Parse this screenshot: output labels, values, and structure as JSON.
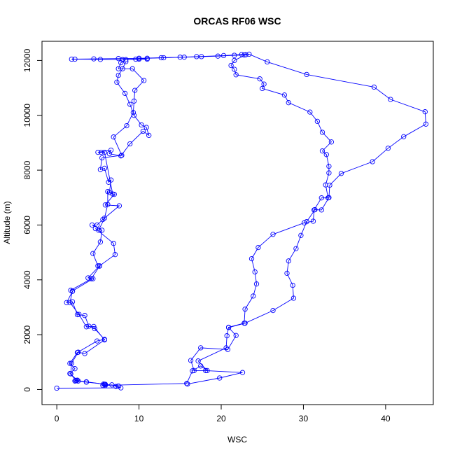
{
  "chart_data": {
    "type": "line",
    "title": "ORCAS RF06 WSC",
    "xlabel": "WSC",
    "ylabel": "Altitude (m)",
    "xlim": [
      -1.8,
      45.8
    ],
    "ylim": [
      -550,
      12700
    ],
    "xticks": [
      0,
      10,
      20,
      30,
      40
    ],
    "yticks": [
      0,
      2000,
      4000,
      6000,
      8000,
      10000,
      12000
    ],
    "grid": false,
    "legend": "none",
    "series_color": "#0000ff",
    "series": [
      {
        "points": [
          [
            0.0,
            50
          ],
          [
            7.8,
            60
          ],
          [
            7.2,
            110
          ],
          [
            6.7,
            170
          ],
          [
            5.9,
            150
          ],
          [
            5.8,
            190
          ],
          [
            5.7,
            200
          ],
          [
            3.6,
            270
          ],
          [
            2.4,
            320
          ],
          [
            2.6,
            310
          ],
          [
            2.2,
            310
          ],
          [
            2.5,
            340
          ],
          [
            1.6,
            580
          ],
          [
            2.2,
            760
          ],
          [
            1.6,
            950
          ],
          [
            2.5,
            1350
          ],
          [
            4.9,
            1770
          ],
          [
            5.8,
            1830
          ],
          [
            4.6,
            2220
          ],
          [
            3.9,
            2310
          ],
          [
            3.4,
            2700
          ],
          [
            2.5,
            2730
          ],
          [
            1.9,
            3200
          ],
          [
            1.2,
            3170
          ],
          [
            1.9,
            3580
          ],
          [
            1.7,
            3620
          ],
          [
            4.2,
            4040
          ],
          [
            5.2,
            4500
          ],
          [
            5.0,
            4510
          ],
          [
            4.4,
            4960
          ],
          [
            5.3,
            5380
          ],
          [
            5.5,
            5810
          ],
          [
            4.3,
            6000
          ],
          [
            4.9,
            6000
          ],
          [
            5.6,
            6200
          ],
          [
            7.6,
            6700
          ],
          [
            5.9,
            6730
          ],
          [
            7.0,
            7120
          ],
          [
            6.4,
            7190
          ],
          [
            6.6,
            7640
          ],
          [
            6.3,
            7560
          ],
          [
            5.8,
            8070
          ],
          [
            5.3,
            8020
          ],
          [
            5.5,
            8450
          ],
          [
            7.9,
            8540
          ],
          [
            6.9,
            9210
          ],
          [
            8.5,
            9620
          ],
          [
            9.3,
            10100
          ],
          [
            9.4,
            10520
          ],
          [
            9.5,
            10910
          ],
          [
            10.6,
            11270
          ],
          [
            9.2,
            11700
          ],
          [
            7.5,
            11700
          ],
          [
            7.8,
            11920
          ],
          [
            8.4,
            12030
          ],
          [
            10.0,
            12050
          ],
          [
            11.0,
            12050
          ]
        ]
      },
      {
        "points": [
          [
            15.9,
            200
          ],
          [
            19.8,
            420
          ],
          [
            22.6,
            620
          ],
          [
            18.1,
            690
          ],
          [
            16.7,
            690
          ],
          [
            16.3,
            1060
          ],
          [
            17.5,
            1520
          ],
          [
            20.8,
            1460
          ],
          [
            21.8,
            1970
          ],
          [
            20.9,
            2260
          ],
          [
            22.9,
            2420
          ],
          [
            26.3,
            2880
          ],
          [
            28.8,
            3330
          ],
          [
            28.7,
            3800
          ],
          [
            28.0,
            4240
          ],
          [
            28.2,
            4690
          ],
          [
            29.1,
            5140
          ],
          [
            29.7,
            5620
          ],
          [
            30.4,
            6120
          ],
          [
            31.4,
            6560
          ],
          [
            32.2,
            6550
          ],
          [
            33.1,
            7000
          ],
          [
            33.2,
            7450
          ],
          [
            34.6,
            7880
          ],
          [
            38.4,
            8310
          ],
          [
            40.3,
            8800
          ],
          [
            42.2,
            9220
          ],
          [
            44.9,
            9680
          ],
          [
            44.8,
            10130
          ],
          [
            40.6,
            10580
          ],
          [
            38.6,
            11030
          ],
          [
            30.4,
            11490
          ],
          [
            25.6,
            11950
          ],
          [
            23.4,
            12230
          ],
          [
            22.5,
            12220
          ],
          [
            20.3,
            12180
          ],
          [
            17.0,
            12140
          ],
          [
            15.0,
            12120
          ],
          [
            12.7,
            12100
          ],
          [
            10.0,
            12080
          ],
          [
            7.5,
            12070
          ],
          [
            4.5,
            12060
          ],
          [
            1.8,
            12050
          ]
        ]
      },
      {
        "points": [
          [
            2.2,
            12050
          ],
          [
            5.3,
            12040
          ],
          [
            8.0,
            12030
          ],
          [
            9.6,
            12050
          ],
          [
            11.0,
            12080
          ],
          [
            13.0,
            12100
          ],
          [
            15.5,
            12120
          ],
          [
            17.6,
            12140
          ],
          [
            19.6,
            12160
          ],
          [
            21.6,
            12190
          ],
          [
            22.8,
            12200
          ],
          [
            23.0,
            12210
          ],
          [
            21.6,
            12000
          ],
          [
            21.2,
            11820
          ],
          [
            21.6,
            11680
          ],
          [
            21.8,
            11480
          ],
          [
            24.7,
            11330
          ],
          [
            25.2,
            11140
          ],
          [
            25.0,
            10980
          ],
          [
            27.7,
            10740
          ],
          [
            28.2,
            10460
          ],
          [
            30.8,
            10120
          ],
          [
            31.7,
            9780
          ],
          [
            32.3,
            9380
          ],
          [
            33.4,
            9030
          ],
          [
            32.3,
            8700
          ],
          [
            32.8,
            8570
          ],
          [
            33.1,
            8140
          ],
          [
            33.1,
            7900
          ],
          [
            32.7,
            7460
          ],
          [
            33.0,
            6990
          ],
          [
            32.2,
            6990
          ],
          [
            31.3,
            6550
          ],
          [
            31.2,
            6140
          ],
          [
            30.1,
            6080
          ],
          [
            26.3,
            5660
          ],
          [
            24.5,
            5180
          ],
          [
            23.7,
            4770
          ],
          [
            24.1,
            4290
          ],
          [
            24.3,
            3850
          ],
          [
            23.9,
            3410
          ],
          [
            22.9,
            2930
          ],
          [
            22.8,
            2420
          ],
          [
            20.9,
            2270
          ],
          [
            20.7,
            1960
          ],
          [
            20.6,
            1520
          ],
          [
            17.2,
            1040
          ],
          [
            18.3,
            690
          ],
          [
            17.5,
            860
          ],
          [
            16.5,
            680
          ],
          [
            15.8,
            220
          ],
          [
            5.6,
            150
          ],
          [
            5.9,
            180
          ]
        ]
      },
      {
        "points": [
          [
            8.4,
            11960
          ],
          [
            8.0,
            11700
          ],
          [
            7.5,
            11460
          ],
          [
            7.3,
            11210
          ],
          [
            8.3,
            10800
          ],
          [
            8.9,
            10400
          ],
          [
            9.4,
            10000
          ],
          [
            10.3,
            9650
          ],
          [
            10.9,
            9560
          ],
          [
            11.2,
            9270
          ],
          [
            10.5,
            9420
          ],
          [
            8.9,
            8960
          ],
          [
            7.8,
            8520
          ],
          [
            6.4,
            8600
          ],
          [
            6.6,
            8730
          ],
          [
            5.0,
            8650
          ],
          [
            5.4,
            8650
          ],
          [
            5.8,
            8650
          ],
          [
            6.8,
            7130
          ],
          [
            6.2,
            7220
          ],
          [
            6.2,
            6750
          ],
          [
            5.8,
            6250
          ],
          [
            5.1,
            5810
          ],
          [
            4.7,
            5870
          ],
          [
            6.9,
            5330
          ],
          [
            7.1,
            4920
          ],
          [
            5.2,
            4510
          ],
          [
            3.8,
            4070
          ],
          [
            4.4,
            4040
          ],
          [
            1.9,
            3590
          ],
          [
            1.6,
            3170
          ],
          [
            2.7,
            2740
          ],
          [
            3.6,
            2290
          ],
          [
            4.5,
            2300
          ],
          [
            5.8,
            1810
          ],
          [
            3.4,
            1310
          ],
          [
            2.6,
            1360
          ],
          [
            1.8,
            960
          ],
          [
            1.7,
            570
          ],
          [
            2.3,
            330
          ],
          [
            3.6,
            280
          ],
          [
            5.9,
            190
          ],
          [
            7.5,
            130
          ]
        ]
      }
    ]
  }
}
